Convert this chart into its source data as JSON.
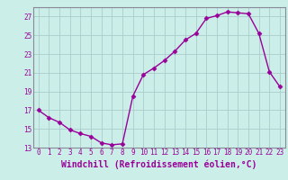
{
  "hours": [
    0,
    1,
    2,
    3,
    4,
    5,
    6,
    7,
    8,
    9,
    10,
    11,
    12,
    13,
    14,
    15,
    16,
    17,
    18,
    19,
    20,
    21,
    22,
    23
  ],
  "temps": [
    17.0,
    16.2,
    15.7,
    14.9,
    14.5,
    14.2,
    13.5,
    13.3,
    13.4,
    18.5,
    20.8,
    21.5,
    22.3,
    23.3,
    24.5,
    25.2,
    26.8,
    27.1,
    27.5,
    27.4,
    27.3,
    25.2,
    21.1,
    19.5
  ],
  "line_color": "#990099",
  "marker": "D",
  "marker_size": 2.5,
  "bg_color": "#cceee8",
  "grid_color": "#aacccc",
  "xlabel": "Windchill (Refroidissement éolien,°C)",
  "ylim": [
    13,
    28
  ],
  "yticks": [
    13,
    15,
    17,
    19,
    21,
    23,
    25,
    27
  ],
  "xticks": [
    0,
    1,
    2,
    3,
    4,
    5,
    6,
    7,
    8,
    9,
    10,
    11,
    12,
    13,
    14,
    15,
    16,
    17,
    18,
    19,
    20,
    21,
    22,
    23
  ],
  "tick_label_fontsize": 5.5,
  "xlabel_fontsize": 7.0,
  "line_width": 1.0
}
